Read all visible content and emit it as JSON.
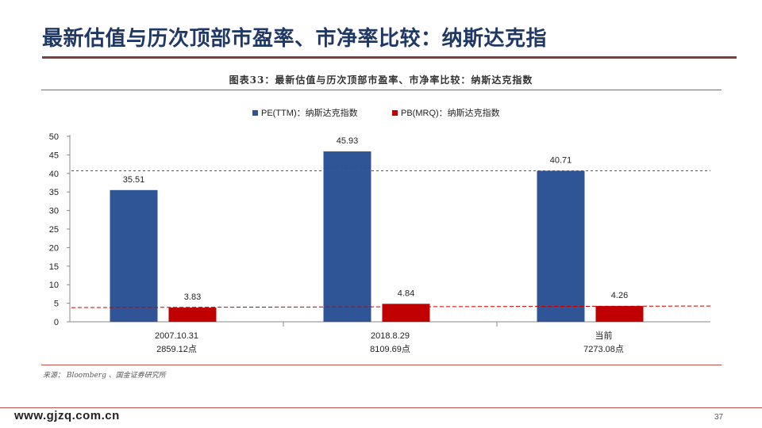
{
  "slide": {
    "title": "最新估值与历次顶部市盈率、市净率比较：纳斯达克指",
    "figure_caption": "图表33：最新估值与历次顶部市盈率、市净率比较：纳斯达克指数",
    "source": "来源： Bloomberg 、国金证券研究所",
    "website": "www.gjzq.com.cn",
    "page_number": "37"
  },
  "colors": {
    "pe": "#2f5597",
    "pb": "#c00000",
    "title": "#1f3864",
    "rule": "#c0504d"
  },
  "chart_data": {
    "type": "bar",
    "categories": [
      [
        "2007.10.31",
        "2859.12点"
      ],
      [
        "2018.8.29",
        "8109.69点"
      ],
      [
        "当前",
        "7273.08点"
      ]
    ],
    "series": [
      {
        "name": "PE(TTM)：纳斯达克指数",
        "values": [
          35.51,
          45.93,
          40.71
        ],
        "color": "#2f5597"
      },
      {
        "name": "PB(MRQ)：纳斯达克指数",
        "values": [
          3.83,
          4.84,
          4.26
        ],
        "color": "#c00000"
      }
    ],
    "value_labels": [
      [
        "35.51",
        "45.93",
        "40.71"
      ],
      [
        "3.83",
        "4.84",
        "4.26"
      ]
    ],
    "ylim": [
      0,
      50
    ],
    "yticks": [
      "0",
      "5",
      "10",
      "15",
      "20",
      "25",
      "30",
      "35",
      "40",
      "45",
      "50"
    ],
    "reference_lines": [
      {
        "value": 40.71,
        "style": "dashed",
        "color": "#555555"
      },
      {
        "value": 3.83,
        "style": "dashed",
        "color": "#c00000",
        "slope_to": 4.26
      }
    ],
    "legend_position": "top-center",
    "grid": false
  }
}
